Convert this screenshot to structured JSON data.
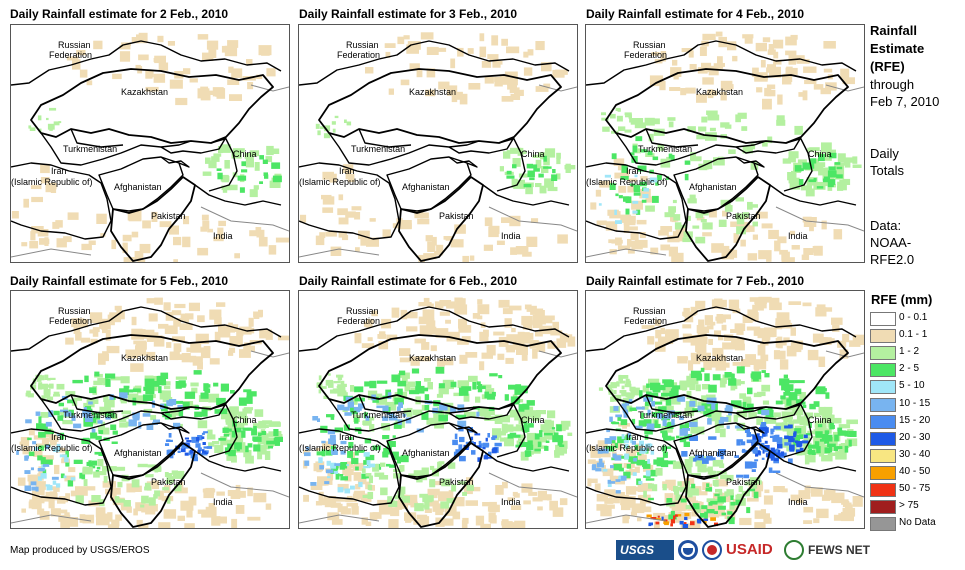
{
  "panels": [
    {
      "title": "Daily Rainfall estimate for 2 Feb., 2010",
      "intensity": 1
    },
    {
      "title": "Daily Rainfall estimate for 3 Feb., 2010",
      "intensity": 1
    },
    {
      "title": "Daily Rainfall estimate for 4 Feb., 2010",
      "intensity": 2
    },
    {
      "title": "Daily Rainfall estimate for 5 Feb., 2010",
      "intensity": 3
    },
    {
      "title": "Daily Rainfall estimate for 6 Feb., 2010",
      "intensity": 3
    },
    {
      "title": "Daily Rainfall estimate for 7 Feb., 2010",
      "intensity": 4
    }
  ],
  "map_labels": {
    "russia_1": "Russian",
    "russia_2": "Federation",
    "kazakhstan": "Kazakhstan",
    "turkmenistan": "Turkmenistan",
    "iran_1": "Iran",
    "iran_2": "(Islamic Republic of)",
    "afghanistan": "Afghanistan",
    "pakistan": "Pakistan",
    "china": "China",
    "india": "India"
  },
  "sidebar": {
    "heading_1": "Rainfall",
    "heading_2": "Estimate",
    "heading_3": "(RFE)",
    "through_1": "through",
    "through_2": "Feb 7, 2010",
    "totals_1": "Daily",
    "totals_2": "Totals",
    "data_1": "Data:",
    "data_2": "NOAA-",
    "data_3": "RFE2.0"
  },
  "legend": {
    "title": "RFE (mm)",
    "items": [
      {
        "label": "0 - 0.1",
        "color": "#ffffff"
      },
      {
        "label": "0.1 - 1",
        "color": "#f0dcb4"
      },
      {
        "label": "1 - 2",
        "color": "#b4f0a0"
      },
      {
        "label": "2 - 5",
        "color": "#4ce664"
      },
      {
        "label": "5 - 10",
        "color": "#a0e6f8"
      },
      {
        "label": "10 - 15",
        "color": "#78b4f0"
      },
      {
        "label": "15 - 20",
        "color": "#4a8cf0"
      },
      {
        "label": "20 - 30",
        "color": "#1e5ae6"
      },
      {
        "label": "30 - 40",
        "color": "#f8e682"
      },
      {
        "label": "40 - 50",
        "color": "#f8a000"
      },
      {
        "label": "50 - 75",
        "color": "#f03214"
      },
      {
        "label": "> 75",
        "color": "#a01e1e"
      },
      {
        "label": "No Data",
        "color": "#969696"
      }
    ]
  },
  "credit": "Map produced by USGS/EROS",
  "logos": {
    "usgs": "USGS",
    "usaid": "USAID",
    "fews": "FEWS NET"
  }
}
